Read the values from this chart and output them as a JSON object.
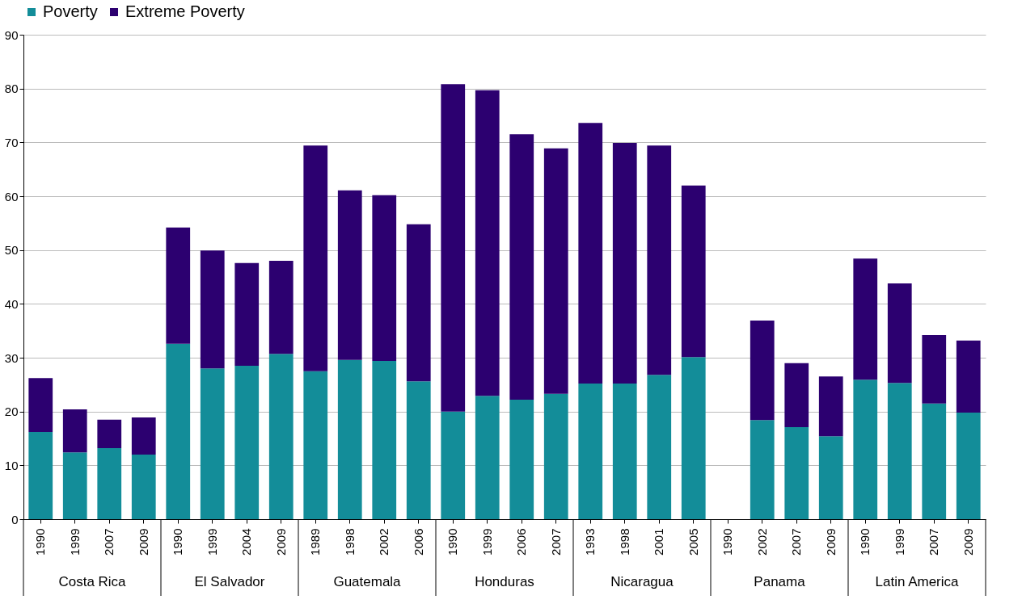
{
  "chart_data": {
    "type": "bar",
    "stacked": true,
    "categories": [
      "1990",
      "1999",
      "2007",
      "2009",
      "1990",
      "1999",
      "2004",
      "2009",
      "1989",
      "1998",
      "2002",
      "2006",
      "1990",
      "1999",
      "2006",
      "2007",
      "1993",
      "1998",
      "2001",
      "2005",
      "1990",
      "2002",
      "2007",
      "2009",
      "1990",
      "1999",
      "2007",
      "2009"
    ],
    "annotations": [
      "Costa Rica",
      "El Salvador",
      "Guatemala",
      "Honduras",
      "Nicaragua",
      "Panama",
      "Latin America"
    ],
    "series": [
      {
        "name": "Poverty",
        "color": "#138d99",
        "values": [
          16.2,
          12.4,
          13.2,
          12.0,
          32.6,
          28.0,
          28.5,
          30.7,
          27.5,
          29.6,
          29.4,
          25.6,
          20.0,
          22.9,
          22.2,
          23.3,
          25.2,
          25.2,
          26.8,
          30.1,
          null,
          18.4,
          17.1,
          15.4,
          25.9,
          25.3,
          21.5,
          19.8
        ]
      },
      {
        "name": "Extreme Poverty",
        "color": "#2c0070",
        "values": [
          10.0,
          8.0,
          5.3,
          6.9,
          21.6,
          21.9,
          19.1,
          17.3,
          41.9,
          31.5,
          30.8,
          29.2,
          60.8,
          56.8,
          49.3,
          45.6,
          48.4,
          44.7,
          42.6,
          31.9,
          null,
          18.5,
          11.9,
          11.1,
          22.5,
          18.5,
          12.7,
          13.4
        ]
      }
    ],
    "ylim": [
      0,
      90
    ],
    "yticks": [
      0,
      10,
      20,
      30,
      40,
      50,
      60,
      70,
      80,
      90
    ],
    "grid": "y",
    "legend": "top"
  }
}
